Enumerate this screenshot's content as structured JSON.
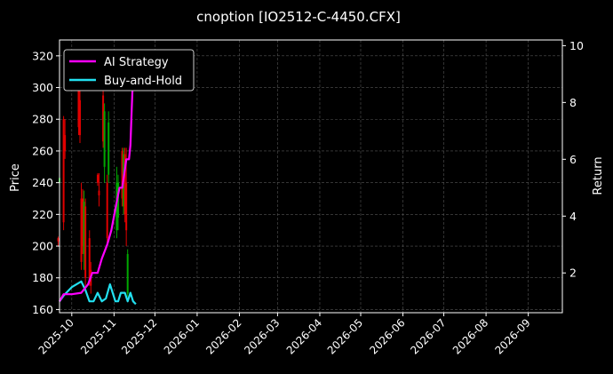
{
  "chart_data": {
    "type": "candlestick+line",
    "title": "cnoption [IO2512-C-4450.CFX]",
    "ylabel_left": "Price",
    "ylabel_right": "Return",
    "x_ticks": [
      "2025-10",
      "2025-11",
      "2025-12",
      "2026-01",
      "2026-02",
      "2026-03",
      "2026-04",
      "2026-05",
      "2026-06",
      "2026-07",
      "2026-08",
      "2026-09"
    ],
    "y_left_ticks": [
      160,
      180,
      200,
      220,
      240,
      260,
      280,
      300,
      320
    ],
    "y_right_ticks": [
      2,
      4,
      6,
      8,
      10
    ],
    "ylim_left": [
      158,
      330
    ],
    "ylim_right": [
      0.6,
      10.2
    ],
    "xlim": [
      "2025-09-22",
      "2026-09-26"
    ],
    "grid": true,
    "legend_position": "top-left",
    "colors": {
      "up": "#00a800",
      "down": "#e00000",
      "strategy": "#ff00ff",
      "buyhold": "#22e0f0",
      "grid": "#555555"
    },
    "series": [
      {
        "name": "AI Strategy",
        "axis": "right",
        "x": [
          "2025-09-22",
          "2025-09-25",
          "2025-10-01",
          "2025-10-08",
          "2025-10-13",
          "2025-10-16",
          "2025-10-20",
          "2025-10-23",
          "2025-10-27",
          "2025-10-30",
          "2025-11-03",
          "2025-11-05",
          "2025-11-07",
          "2025-11-10",
          "2025-11-12",
          "2025-11-13",
          "2025-11-14",
          "2025-11-15",
          "2025-11-17"
        ],
        "values": [
          1.0,
          1.25,
          1.25,
          1.3,
          1.6,
          2.0,
          2.0,
          2.5,
          3.0,
          3.5,
          4.5,
          5.0,
          5.0,
          6.0,
          6.0,
          6.5,
          7.8,
          9.0,
          9.8
        ]
      },
      {
        "name": "Buy-and-Hold",
        "axis": "right",
        "x": [
          "2025-09-22",
          "2025-09-25",
          "2025-10-01",
          "2025-10-08",
          "2025-10-11",
          "2025-10-14",
          "2025-10-17",
          "2025-10-20",
          "2025-10-23",
          "2025-10-26",
          "2025-10-29",
          "2025-10-31",
          "2025-11-02",
          "2025-11-04",
          "2025-11-06",
          "2025-11-09",
          "2025-11-11",
          "2025-11-13",
          "2025-11-15",
          "2025-11-17"
        ],
        "values": [
          1.0,
          1.2,
          1.5,
          1.7,
          1.4,
          1.0,
          1.0,
          1.3,
          1.0,
          1.1,
          1.6,
          1.3,
          1.0,
          1.0,
          1.3,
          1.3,
          1.0,
          1.3,
          1.0,
          0.9
        ]
      }
    ],
    "candles": [
      {
        "x": "2025-09-21",
        "o": 205,
        "h": 206,
        "l": 200,
        "c": 203
      },
      {
        "x": "2025-09-22",
        "o": 240,
        "h": 245,
        "l": 236,
        "c": 243
      },
      {
        "x": "2025-09-25",
        "o": 280,
        "h": 282,
        "l": 210,
        "c": 215
      },
      {
        "x": "2025-09-26",
        "o": 270,
        "h": 280,
        "l": 255,
        "c": 260
      },
      {
        "x": "2025-10-06",
        "o": 305,
        "h": 312,
        "l": 270,
        "c": 275
      },
      {
        "x": "2025-10-07",
        "o": 292,
        "h": 298,
        "l": 265,
        "c": 270
      },
      {
        "x": "2025-10-08",
        "o": 230,
        "h": 240,
        "l": 185,
        "c": 190
      },
      {
        "x": "2025-10-09",
        "o": 230,
        "h": 236,
        "l": 195,
        "c": 200
      },
      {
        "x": "2025-10-10",
        "o": 195,
        "h": 235,
        "l": 185,
        "c": 228
      },
      {
        "x": "2025-10-11",
        "o": 225,
        "h": 230,
        "l": 175,
        "c": 180
      },
      {
        "x": "2025-10-14",
        "o": 205,
        "h": 210,
        "l": 175,
        "c": 178
      },
      {
        "x": "2025-10-15",
        "o": 185,
        "h": 190,
        "l": 170,
        "c": 175
      },
      {
        "x": "2025-10-20",
        "o": 245,
        "h": 246,
        "l": 238,
        "c": 240
      },
      {
        "x": "2025-10-21",
        "o": 235,
        "h": 246,
        "l": 225,
        "c": 232
      },
      {
        "x": "2025-10-24",
        "o": 295,
        "h": 308,
        "l": 262,
        "c": 266
      },
      {
        "x": "2025-10-25",
        "o": 250,
        "h": 290,
        "l": 240,
        "c": 285
      },
      {
        "x": "2025-10-27",
        "o": 240,
        "h": 245,
        "l": 200,
        "c": 205
      },
      {
        "x": "2025-10-28",
        "o": 245,
        "h": 285,
        "l": 240,
        "c": 278
      },
      {
        "x": "2025-11-03",
        "o": 210,
        "h": 250,
        "l": 205,
        "c": 240
      },
      {
        "x": "2025-11-04",
        "o": 218,
        "h": 245,
        "l": 210,
        "c": 240
      },
      {
        "x": "2025-11-07",
        "o": 260,
        "h": 262,
        "l": 225,
        "c": 230
      },
      {
        "x": "2025-11-08",
        "o": 225,
        "h": 262,
        "l": 220,
        "c": 258
      },
      {
        "x": "2025-11-09",
        "o": 258,
        "h": 262,
        "l": 215,
        "c": 220
      },
      {
        "x": "2025-11-10",
        "o": 240,
        "h": 262,
        "l": 200,
        "c": 210
      },
      {
        "x": "2025-11-11",
        "o": 170,
        "h": 198,
        "l": 168,
        "c": 195
      }
    ],
    "legend": [
      {
        "label": "AI Strategy",
        "color": "#ff00ff"
      },
      {
        "label": "Buy-and-Hold",
        "color": "#22e0f0"
      }
    ]
  }
}
